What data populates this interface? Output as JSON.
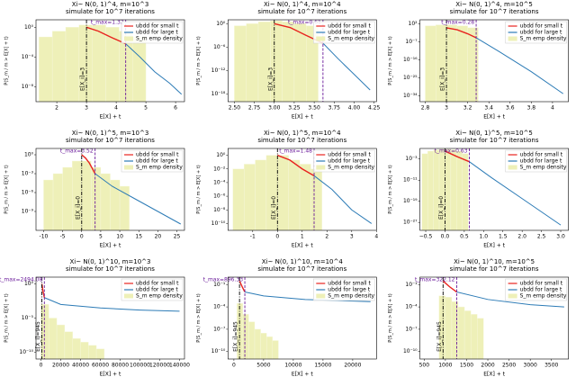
{
  "chart_data": [
    {
      "type": "line",
      "title": "Xi~ N(0, 1)^4,  m=10^3",
      "subtitle": "simulate for 10^7 iterations",
      "xlabel": "E[X] + t",
      "ylabel": "P(S_m / m > E[X] + t)",
      "log_y": true,
      "legend": "upper right",
      "xlim": [
        1.3,
        6.3
      ],
      "xticks": [
        2,
        3,
        4,
        5,
        6
      ],
      "ylim": [
        1e-10,
        10
      ],
      "yticks": [
        {
          "value": 1,
          "label": "10⁰"
        },
        {
          "value": 0.0001,
          "label": "10⁻⁴"
        },
        {
          "value": 1e-08,
          "label": "10⁻⁸"
        }
      ],
      "histogram": {
        "name": "S_m emp density",
        "color": "#eef0b8",
        "bins": [
          1.4,
          1.85,
          2.3,
          2.75,
          3.2,
          3.65,
          4.1,
          4.55,
          5.0
        ],
        "counts": [
          0.05,
          0.3,
          1,
          2,
          2,
          1,
          0.3,
          0.05
        ]
      },
      "series": [
        {
          "name": "ubdd for small t",
          "color": "#e8231f",
          "x": [
            3,
            3.4,
            3.8,
            4.32
          ],
          "values": [
            1,
            0.3,
            0.05,
            0.006
          ]
        },
        {
          "name": "ubdd for large t",
          "color": "#2c7bb6",
          "x": [
            4.32,
            4.8,
            5.3,
            5.8,
            6.2
          ],
          "values": [
            0.006,
            0.0001,
            1e-06,
            3e-08,
            1e-09
          ]
        }
      ],
      "vlines": [
        {
          "x": 3,
          "label": "E[X_i]=3",
          "color": "#000000",
          "style": "dashdot"
        },
        {
          "x": 4.32,
          "label": "t_max=1.32",
          "color": "#6a1b9a",
          "style": "dashed"
        }
      ]
    },
    {
      "type": "line",
      "title": "Xi~ N(0, 1)^4,  m=10^4",
      "subtitle": "simulate for 10^7 iterations",
      "xlabel": "E[X] + t",
      "ylabel": "P(S_m / m > E[X] + t)",
      "log_y": true,
      "legend": "upper right",
      "xlim": [
        2.42,
        4.28
      ],
      "xticks": [
        {
          "value": 2.5,
          "label": "2.50"
        },
        {
          "value": 2.75,
          "label": "2.75"
        },
        {
          "value": 3,
          "label": "3.00"
        },
        {
          "value": 3.25,
          "label": "3.25"
        },
        {
          "value": 3.5,
          "label": "3.50"
        },
        {
          "value": 3.75,
          "label": "3.75"
        },
        {
          "value": 4,
          "label": "4.00"
        },
        {
          "value": 4.25,
          "label": "4.25"
        }
      ],
      "ylim": [
        1e-20,
        10
      ],
      "yticks": [
        {
          "value": 1,
          "label": "10⁰"
        },
        {
          "value": 1e-06,
          "label": "10⁻⁶"
        },
        {
          "value": 1e-12,
          "label": "10⁻¹²"
        },
        {
          "value": 1e-18,
          "label": "10⁻¹⁸"
        }
      ],
      "histogram": {
        "name": "S_m emp density",
        "color": "#eef0b8",
        "bins": [
          2.5,
          2.65,
          2.8,
          2.95,
          3.1,
          3.25,
          3.4,
          3.55
        ],
        "counts": [
          0.3,
          1,
          3,
          5,
          3,
          1,
          0.3
        ]
      },
      "series": [
        {
          "name": "ubdd for small t",
          "color": "#e8231f",
          "x": [
            3,
            3.2,
            3.4,
            3.61
          ],
          "values": [
            1,
            0.1,
            0.001,
            1e-05
          ]
        },
        {
          "name": "ubdd for large t",
          "color": "#2c7bb6",
          "x": [
            3.61,
            3.8,
            4,
            4.2
          ],
          "values": [
            1e-05,
            1e-09,
            1e-13,
            1e-17
          ]
        }
      ],
      "vlines": [
        {
          "x": 3,
          "label": "E[X_i]=3",
          "color": "#000000",
          "style": "dashdot"
        },
        {
          "x": 3.61,
          "label": "t_max=0.61",
          "color": "#6a1b9a",
          "style": "dashed"
        }
      ]
    },
    {
      "type": "line",
      "title": "Xi~ N(0, 1)^4,  m=10^5",
      "subtitle": "simulate for 10^7 iterations",
      "xlabel": "E[X] + t",
      "ylabel": "P(S_m / m > E[X] + t)",
      "log_y": true,
      "legend": "upper right",
      "xlim": [
        2.75,
        4.15
      ],
      "xticks": [
        2.8,
        3.0,
        3.2,
        3.4,
        3.6,
        3.8,
        4.0
      ],
      "ylim": [
        1e-37,
        10000
      ],
      "yticks": [
        {
          "value": 100,
          "label": "10²"
        },
        {
          "value": 1e-07,
          "label": "10⁻⁷"
        },
        {
          "value": 1e-16,
          "label": "10⁻¹⁶"
        },
        {
          "value": 1e-25,
          "label": "10⁻²⁵"
        },
        {
          "value": 1e-34,
          "label": "10⁻³⁴"
        }
      ],
      "histogram": {
        "name": "S_m emp density",
        "color": "#eef0b8",
        "bins": [
          2.8,
          2.9,
          3.0,
          3.1,
          3.2,
          3.3
        ],
        "counts": [
          10,
          30,
          30,
          10,
          1
        ]
      },
      "series": [
        {
          "name": "ubdd for small t",
          "color": "#e8231f",
          "x": [
            3,
            3.1,
            3.2,
            3.28
          ],
          "values": [
            1,
            0.1,
            0.001,
            1e-05
          ]
        },
        {
          "name": "ubdd for large t",
          "color": "#2c7bb6",
          "x": [
            3.28,
            3.5,
            3.8,
            4.1
          ],
          "values": [
            1e-05,
            1e-12,
            1e-22,
            1e-33
          ]
        }
      ],
      "vlines": [
        {
          "x": 3,
          "label": "E[X_i]=3",
          "color": "#000000",
          "style": "dashdot"
        },
        {
          "x": 3.28,
          "label": "t_max=0.28",
          "color": "#6a1b9a",
          "style": "dashed"
        }
      ]
    },
    {
      "type": "line",
      "title": "Xi~ N(0, 1)^5,  m=10^3",
      "subtitle": "simulate for 10^7 iterations",
      "xlabel": "E[X] + t",
      "ylabel": "P(S_m / m > E[X] + t)",
      "log_y": true,
      "legend": "upper right",
      "xlim": [
        -12,
        27
      ],
      "xticks": [
        -10,
        -5,
        0,
        5,
        10,
        15,
        20,
        25
      ],
      "ylim": [
        1e-12,
        10
      ],
      "yticks": [
        {
          "value": 1,
          "label": "10⁰"
        },
        {
          "value": 0.001,
          "label": "10⁻³"
        },
        {
          "value": 1e-06,
          "label": "10⁻⁶"
        },
        {
          "value": 1e-09,
          "label": "10⁻⁹"
        }
      ],
      "histogram": {
        "name": "S_m emp density",
        "color": "#eef0b8",
        "bins": [
          -10,
          -7.5,
          -5,
          -2.5,
          0,
          2.5,
          5,
          7.5,
          10,
          12.5
        ],
        "counts": [
          0.0001,
          0.001,
          0.01,
          0.1,
          0.1,
          0.01,
          0.001,
          0.0001,
          1e-05
        ]
      },
      "series": [
        {
          "name": "ubdd for small t",
          "color": "#e8231f",
          "x": [
            0,
            1,
            2,
            3.52
          ],
          "values": [
            1,
            0.3,
            0.05,
            0.001
          ]
        },
        {
          "name": "ubdd for large t",
          "color": "#2c7bb6",
          "x": [
            3.52,
            8,
            14,
            20,
            26
          ],
          "values": [
            0.001,
            1e-05,
            1e-07,
            1e-09,
            1e-11
          ]
        }
      ],
      "vlines": [
        {
          "x": 0,
          "label": "E[X_i]=0",
          "color": "#000000",
          "style": "dashdot"
        },
        {
          "x": 3.52,
          "label": "t_max=3.52",
          "color": "#6a1b9a",
          "style": "dashed"
        }
      ]
    },
    {
      "type": "line",
      "title": "Xi~ N(0, 1)^5,  m=10^4",
      "subtitle": "simulate for 10^7 iterations",
      "xlabel": "E[X] + t",
      "ylabel": "P(S_m / m > E[X] + t)",
      "log_y": true,
      "legend": "upper right",
      "xlim": [
        -2,
        4
      ],
      "xticks": [
        -1,
        0,
        1,
        2,
        3,
        4
      ],
      "ylim": [
        1e-11,
        10
      ],
      "yticks": [
        {
          "value": 1,
          "label": "10⁰"
        },
        {
          "value": 0.01,
          "label": "10⁻²"
        },
        {
          "value": 0.0001,
          "label": "10⁻⁴"
        },
        {
          "value": 1e-06,
          "label": "10⁻⁶"
        },
        {
          "value": 1e-08,
          "label": "10⁻⁸"
        },
        {
          "value": 1e-10,
          "label": "10⁻¹⁰"
        }
      ],
      "histogram": {
        "name": "S_m emp density",
        "color": "#eef0b8",
        "bins": [
          -1.8,
          -1.35,
          -0.9,
          -0.45,
          0,
          0.45,
          0.9,
          1.35,
          1.8
        ],
        "counts": [
          0.01,
          0.05,
          0.2,
          1,
          1,
          0.2,
          0.05,
          0.01
        ]
      },
      "series": [
        {
          "name": "ubdd for small t",
          "color": "#e8231f",
          "x": [
            0,
            0.5,
            1,
            1.48
          ],
          "values": [
            1,
            0.2,
            0.01,
            0.001
          ]
        },
        {
          "name": "ubdd for large t",
          "color": "#2c7bb6",
          "x": [
            1.48,
            2.2,
            3,
            3.8
          ],
          "values": [
            0.001,
            1e-05,
            1e-08,
            1e-10
          ]
        }
      ],
      "vlines": [
        {
          "x": 0,
          "label": "E[X_i]=0",
          "color": "#000000",
          "style": "dashdot"
        },
        {
          "x": 1.48,
          "label": "t_max=1.48",
          "color": "#6a1b9a",
          "style": "dashed"
        }
      ]
    },
    {
      "type": "line",
      "title": "Xi~ N(0, 1)^5,  m=10^5",
      "subtitle": "simulate for 10^7 iterations",
      "xlabel": "E[X] + t",
      "ylabel": "P(S_m / m > E[X] + t)",
      "log_y": true,
      "legend": "upper right",
      "xlim": [
        -0.65,
        3.2
      ],
      "xticks": [
        {
          "value": -0.5,
          "label": "−0.5"
        },
        {
          "value": 0,
          "label": "0.0"
        },
        {
          "value": 0.5,
          "label": "0.5"
        },
        {
          "value": 1,
          "label": "1.0"
        },
        {
          "value": 1.5,
          "label": "1.5"
        },
        {
          "value": 2,
          "label": "2.0"
        },
        {
          "value": 2.5,
          "label": "2.5"
        },
        {
          "value": 3,
          "label": "3.0"
        }
      ],
      "ylim": [
        1e-30,
        10
      ],
      "yticks": [
        {
          "value": 0.001,
          "label": "10⁻³"
        },
        {
          "value": 1e-11,
          "label": "10⁻¹¹"
        },
        {
          "value": 1e-19,
          "label": "10⁻¹⁹"
        },
        {
          "value": 1e-27,
          "label": "10⁻²⁷"
        }
      ],
      "histogram": {
        "name": "S_m emp density",
        "color": "#eef0b8",
        "bins": [
          -0.6,
          -0.45,
          -0.3,
          -0.15,
          0,
          0.15,
          0.3,
          0.45,
          0.6
        ],
        "counts": [
          0.1,
          1,
          3,
          5,
          5,
          3,
          1,
          0.1
        ]
      },
      "series": [
        {
          "name": "ubdd for small t",
          "color": "#e8231f",
          "x": [
            0,
            0.3,
            0.63
          ],
          "values": [
            1,
            0.01,
            0.0001
          ]
        },
        {
          "name": "ubdd for large t",
          "color": "#2c7bb6",
          "x": [
            0.63,
            1.2,
            2,
            3
          ],
          "values": [
            0.0001,
            1e-10,
            1e-18,
            1e-28
          ]
        }
      ],
      "vlines": [
        {
          "x": 0,
          "label": "E[X_i]=0",
          "color": "#000000",
          "style": "dashdot"
        },
        {
          "x": 0.63,
          "label": "t_max=0.63",
          "color": "#6a1b9a",
          "style": "dashed"
        }
      ]
    },
    {
      "type": "line",
      "title": "Xi~ N(0, 1)^10,  m=10^3",
      "subtitle": "simulate for 10^7 iterations",
      "xlabel": "E[X] + t",
      "ylabel": "P(S_m / m > E[X] + t)",
      "log_y": true,
      "legend": "upper right",
      "xlim": [
        -5000,
        145000
      ],
      "xticks": [
        0,
        20000,
        40000,
        60000,
        80000,
        100000,
        120000,
        140000
      ],
      "ylim": [
        1e-11,
        10
      ],
      "yticks": [
        {
          "value": 1,
          "label": "10⁰"
        },
        {
          "value": 1e-05,
          "label": "10⁻⁵"
        },
        {
          "value": 1e-10,
          "label": "10⁻¹⁰"
        }
      ],
      "histogram": {
        "name": "S_m emp density",
        "color": "#eef0b8",
        "bins": [
          0,
          8000,
          16000,
          24000,
          32000,
          40000,
          48000,
          56000,
          64000
        ],
        "counts": [
          0.001,
          1e-05,
          1e-06,
          1e-07,
          1e-08,
          3e-09,
          1e-09,
          3e-10
        ]
      },
      "series": [
        {
          "name": "ubdd for small t",
          "color": "#e8231f",
          "x": [
            945,
            2000,
            3439.08
          ],
          "values": [
            1,
            0.1,
            0.01
          ]
        },
        {
          "name": "ubdd for large t",
          "color": "#2c7bb6",
          "x": [
            3439.08,
            20000,
            60000,
            100000,
            140000
          ],
          "values": [
            0.01,
            0.001,
            0.0003,
            0.00015,
            0.0001
          ]
        }
      ],
      "vlines": [
        {
          "x": 945,
          "label": "E[X_i]=945",
          "color": "#000000",
          "style": "dashdot"
        },
        {
          "x": 3439.08,
          "label": "t_max=2494.08",
          "color": "#6a1b9a",
          "style": "dashed"
        }
      ]
    },
    {
      "type": "line",
      "title": "Xi~ N(0, 1)^10,  m=10^4",
      "subtitle": "simulate for 10^7 iterations",
      "xlabel": "E[X] + t",
      "ylabel": "P(S_m / m > E[X] + t)",
      "log_y": true,
      "legend": "upper right",
      "xlim": [
        -1000,
        24000
      ],
      "xticks": [
        0,
        5000,
        10000,
        15000,
        20000
      ],
      "ylim": [
        1e-11,
        1
      ],
      "yticks": [
        {
          "value": 0.1,
          "label": "10⁻¹"
        },
        {
          "value": 0.0001,
          "label": "10⁻⁴"
        },
        {
          "value": 1e-07,
          "label": "10⁻⁷"
        },
        {
          "value": 1e-10,
          "label": "10⁻¹⁰"
        }
      ],
      "histogram": {
        "name": "S_m emp density",
        "color": "#eef0b8",
        "bins": [
          500,
          1500,
          2500,
          3500,
          4500,
          5500,
          6500,
          7500
        ],
        "counts": [
          0.0003,
          1e-05,
          1e-06,
          1e-07,
          3e-08,
          1e-08,
          3e-09
        ]
      },
      "series": [
        {
          "name": "ubdd for small t",
          "color": "#e8231f",
          "x": [
            945,
            1400,
            1841.33
          ],
          "values": [
            0.3,
            0.05,
            0.01
          ]
        },
        {
          "name": "ubdd for large t",
          "color": "#2c7bb6",
          "x": [
            1841.33,
            5000,
            12000,
            23000
          ],
          "values": [
            0.01,
            0.003,
            0.001,
            0.0005
          ]
        }
      ],
      "vlines": [
        {
          "x": 945,
          "label": "E[X_i]=945",
          "color": "#000000",
          "style": "dashdot"
        },
        {
          "x": 1841.33,
          "label": "t_max=896.33",
          "color": "#6a1b9a",
          "style": "dashed"
        }
      ]
    },
    {
      "type": "line",
      "title": "Xi~ N(0, 1)^10,  m=10^5",
      "subtitle": "simulate for 10^7 iterations",
      "xlabel": "E[X] + t",
      "ylabel": "P(S_m / m > E[X] + t)",
      "log_y": true,
      "legend": "upper right",
      "xlim": [
        400,
        3900
      ],
      "xticks": [
        500,
        1000,
        1500,
        2000,
        2500,
        3000,
        3500
      ],
      "ylim": [
        1e-11,
        1
      ],
      "yticks": [
        {
          "value": 0.1,
          "label": "10⁻¹"
        },
        {
          "value": 0.0001,
          "label": "10⁻⁴"
        },
        {
          "value": 1e-07,
          "label": "10⁻⁷"
        },
        {
          "value": 1e-10,
          "label": "10⁻¹⁰"
        }
      ],
      "histogram": {
        "name": "S_m emp density",
        "color": "#eef0b8",
        "bins": [
          850,
          1000,
          1150,
          1300,
          1450,
          1600,
          1750,
          1900
        ],
        "counts": [
          0.003,
          0.002,
          0.0005,
          0.0001,
          3e-05,
          1e-05,
          3e-06
        ]
      },
      "series": [
        {
          "name": "ubdd for small t",
          "color": "#e8231f",
          "x": [
            945,
            1100,
            1267.12
          ],
          "values": [
            0.3,
            0.05,
            0.01
          ]
        },
        {
          "name": "ubdd for large t",
          "color": "#2c7bb6",
          "x": [
            1267.12,
            2000,
            3000,
            3800
          ],
          "values": [
            0.01,
            0.001,
            0.0002,
            0.0001
          ]
        }
      ],
      "vlines": [
        {
          "x": 945,
          "label": "E[X_i]=945",
          "color": "#000000",
          "style": "dashdot"
        },
        {
          "x": 1267.12,
          "label": "t_max=322.12",
          "color": "#6a1b9a",
          "style": "dashed"
        }
      ]
    }
  ]
}
